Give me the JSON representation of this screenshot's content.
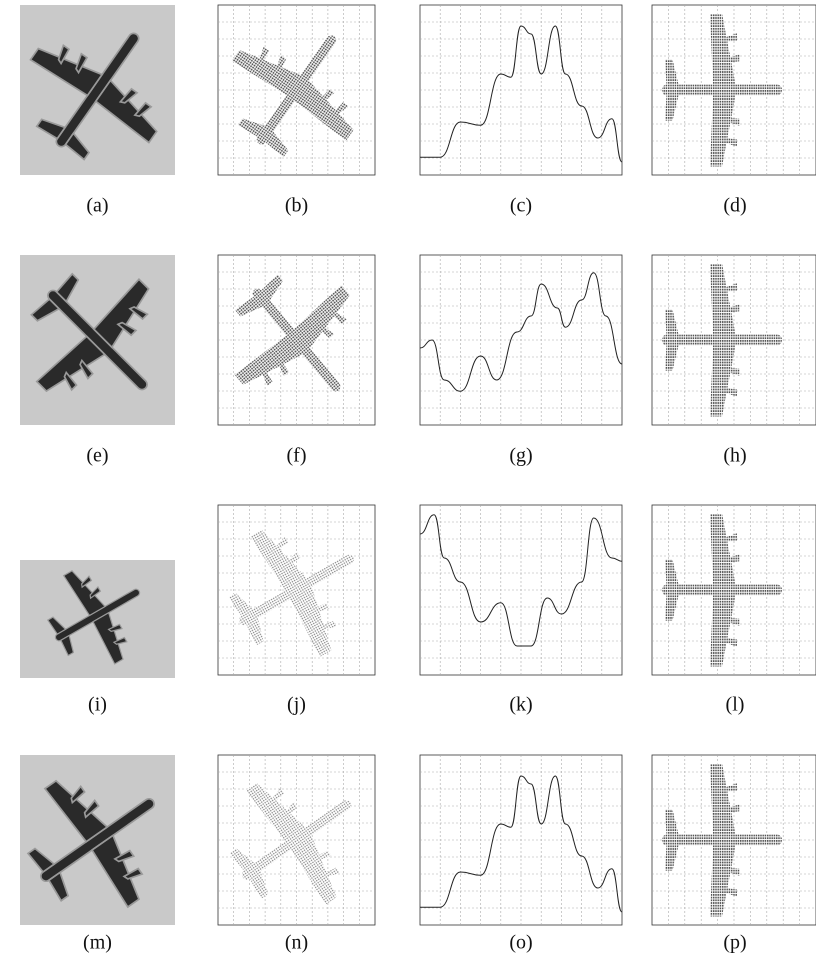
{
  "captions": [
    "(a)",
    "(b)",
    "(c)",
    "(d)",
    "(e)",
    "(f)",
    "(g)",
    "(h)",
    "(i)",
    "(j)",
    "(k)",
    "(l)",
    "(m)",
    "(n)",
    "(o)",
    "(p)"
  ]
}
